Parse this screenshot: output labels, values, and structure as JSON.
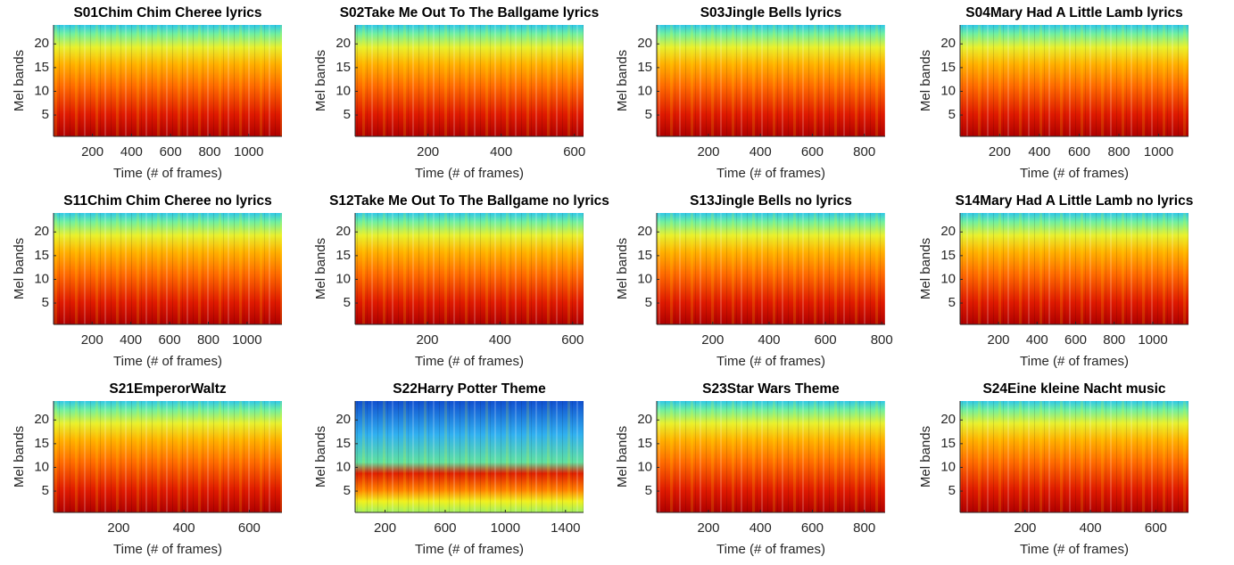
{
  "chart_data": [
    {
      "type": "heatmap",
      "title": "S01Chim Chim Cheree lyrics",
      "xlabel": "Time (# of frames)",
      "ylabel": "Mel bands",
      "xlim": [
        1,
        1170
      ],
      "ylim": [
        0.5,
        24
      ],
      "xticks": [
        200,
        400,
        600,
        800,
        1000
      ],
      "yticks": [
        5,
        10,
        15,
        20
      ]
    },
    {
      "type": "heatmap",
      "title": "S02Take Me Out To The Ballgame lyrics",
      "xlabel": "Time (# of frames)",
      "ylabel": "Mel bands",
      "xlim": [
        1,
        625
      ],
      "ylim": [
        0.5,
        24
      ],
      "xticks": [
        200,
        400,
        600
      ],
      "yticks": [
        5,
        10,
        15,
        20
      ]
    },
    {
      "type": "heatmap",
      "title": "S03Jingle Bells lyrics",
      "xlabel": "Time (# of frames)",
      "ylabel": "Mel bands",
      "xlim": [
        1,
        880
      ],
      "ylim": [
        0.5,
        24
      ],
      "xticks": [
        200,
        400,
        600,
        800
      ],
      "yticks": [
        5,
        10,
        15,
        20
      ]
    },
    {
      "type": "heatmap",
      "title": "S04Mary Had A Little Lamb lyrics",
      "xlabel": "Time (# of frames)",
      "ylabel": "Mel bands",
      "xlim": [
        1,
        1150
      ],
      "ylim": [
        0.5,
        24
      ],
      "xticks": [
        200,
        400,
        600,
        800,
        1000
      ],
      "yticks": [
        5,
        10,
        15,
        20
      ]
    },
    {
      "type": "heatmap",
      "title": "S11Chim Chim Cheree no lyrics",
      "xlabel": "Time (# of frames)",
      "ylabel": "Mel bands",
      "xlim": [
        1,
        1180
      ],
      "ylim": [
        0.5,
        24
      ],
      "xticks": [
        200,
        400,
        600,
        800,
        1000
      ],
      "yticks": [
        5,
        10,
        15,
        20
      ]
    },
    {
      "type": "heatmap",
      "title": "S12Take Me Out To The Ballgame no lyrics",
      "xlabel": "Time (# of frames)",
      "ylabel": "Mel bands",
      "xlim": [
        1,
        630
      ],
      "ylim": [
        0.5,
        24
      ],
      "xticks": [
        200,
        400,
        600
      ],
      "yticks": [
        5,
        10,
        15,
        20
      ]
    },
    {
      "type": "heatmap",
      "title": "S13Jingle Bells no lyrics",
      "xlabel": "Time (# of frames)",
      "ylabel": "Mel bands",
      "xlim": [
        1,
        812
      ],
      "ylim": [
        0.5,
        24
      ],
      "xticks": [
        200,
        400,
        600,
        800
      ],
      "yticks": [
        5,
        10,
        15,
        20
      ]
    },
    {
      "type": "heatmap",
      "title": "S14Mary Had A Little Lamb no lyrics",
      "xlabel": "Time (# of frames)",
      "ylabel": "Mel bands",
      "xlim": [
        1,
        1185
      ],
      "ylim": [
        0.5,
        24
      ],
      "xticks": [
        200,
        400,
        600,
        800,
        1000
      ],
      "yticks": [
        5,
        10,
        15,
        20
      ]
    },
    {
      "type": "heatmap",
      "title": "S21EmperorWaltz",
      "xlabel": "Time (# of frames)",
      "ylabel": "Mel bands",
      "xlim": [
        1,
        700
      ],
      "ylim": [
        0.5,
        24
      ],
      "xticks": [
        200,
        400,
        600
      ],
      "yticks": [
        5,
        10,
        15,
        20
      ]
    },
    {
      "type": "heatmap",
      "title": "S22Harry Potter Theme",
      "xlabel": "Time (# of frames)",
      "ylabel": "Mel bands",
      "xlim": [
        1,
        1520
      ],
      "ylim": [
        0.5,
        24
      ],
      "xticks": [
        200,
        600,
        1000,
        1400
      ],
      "yticks": [
        5,
        10,
        15,
        20
      ]
    },
    {
      "type": "heatmap",
      "title": "S23Star Wars Theme",
      "xlabel": "Time (# of frames)",
      "ylabel": "Mel bands",
      "xlim": [
        1,
        880
      ],
      "ylim": [
        0.5,
        24
      ],
      "xticks": [
        200,
        400,
        600,
        800
      ],
      "yticks": [
        5,
        10,
        15,
        20
      ]
    },
    {
      "type": "heatmap",
      "title": "S24Eine kleine Nacht music",
      "xlabel": "Time (# of frames)",
      "ylabel": "Mel bands",
      "xlim": [
        1,
        700
      ],
      "ylim": [
        0.5,
        24
      ],
      "xticks": [
        200,
        400,
        600
      ],
      "yticks": [
        5,
        10,
        15,
        20
      ]
    }
  ]
}
